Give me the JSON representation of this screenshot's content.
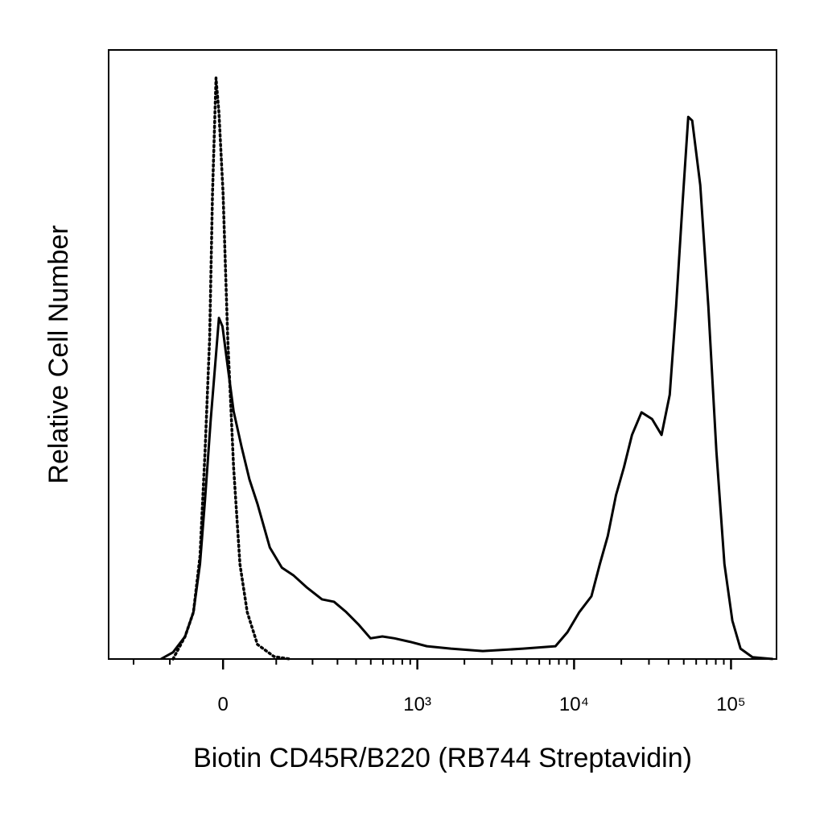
{
  "chart_data": {
    "type": "line",
    "xlabel": "Biotin CD45R/B220 (RB744 Streptavidin)",
    "ylabel": "Relative Cell Number",
    "xscale": "biexponential",
    "xlim": [
      -300,
      195000
    ],
    "ylim": [
      0,
      100
    ],
    "xticks": [
      0,
      {
        "value": 1000,
        "label": "10³"
      },
      {
        "value": 10000,
        "label": "10⁴"
      },
      {
        "value": 100000,
        "label": "10⁵"
      }
    ],
    "xminorticks": [
      -200,
      -100,
      100,
      200,
      300,
      400,
      500,
      600,
      700,
      800,
      900,
      2000,
      3000,
      4000,
      5000,
      6000,
      7000,
      8000,
      9000,
      20000,
      30000,
      40000,
      50000,
      60000,
      70000,
      80000,
      90000
    ],
    "series": [
      {
        "color": "#000000",
        "style": "solid",
        "x": [
          -121,
          -93,
          -68,
          -52,
          -40,
          -31,
          -21,
          -12,
          -7,
          -1,
          7,
          18,
          32,
          46,
          61,
          86,
          113,
          143,
          180,
          234,
          284,
          344,
          414,
          498,
          595,
          712,
          905,
          1150,
          1640,
          2620,
          4740,
          7610,
          9070,
          10800,
          12900,
          14600,
          16400,
          18500,
          20800,
          23400,
          26900,
          31400,
          36100,
          40700,
          44700,
          49200,
          53400,
          56600,
          63700,
          71700,
          80700,
          90800,
          102000,
          115000,
          137000,
          185000
        ],
        "values": [
          0,
          1.1,
          3.7,
          7.7,
          15.6,
          26.2,
          39.4,
          50.0,
          56.0,
          54.6,
          48.7,
          40.7,
          34.8,
          29.5,
          25.5,
          18.3,
          15.0,
          13.7,
          11.8,
          9.8,
          9.4,
          7.7,
          5.7,
          3.4,
          3.7,
          3.4,
          2.8,
          2.1,
          1.7,
          1.3,
          1.7,
          2.1,
          4.4,
          7.7,
          10.3,
          15.6,
          20.2,
          26.9,
          31.5,
          36.8,
          40.5,
          39.4,
          36.8,
          43.4,
          57.9,
          75.1,
          89.0,
          88.4,
          77.8,
          57.9,
          34.1,
          15.6,
          6.3,
          1.7,
          0.3,
          0
        ]
      },
      {
        "color": "#000000",
        "style": "dotted",
        "x": [
          -93,
          -68,
          -52,
          -40,
          -31,
          -23,
          -18,
          -12,
          -7,
          0,
          8,
          18,
          29,
          42,
          61,
          95,
          133
        ],
        "values": [
          0,
          3.7,
          7.7,
          16.9,
          34.1,
          52.6,
          76.5,
          95.4,
          89.7,
          76.5,
          52.6,
          31.5,
          15.6,
          7.7,
          2.4,
          0.4,
          0
        ]
      }
    ]
  }
}
